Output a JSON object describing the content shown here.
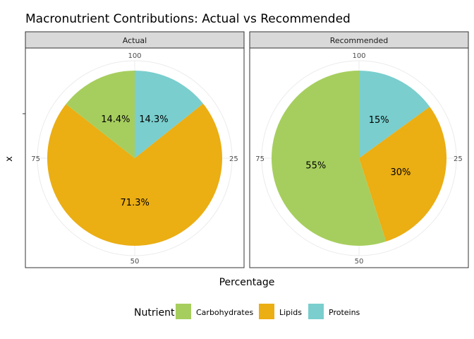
{
  "chart_data": {
    "type": "pie",
    "title": "Macronutrient Contributions: Actual vs Recommended",
    "xlabel": "Percentage",
    "ylabel": "x",
    "angular_axis": {
      "range": [
        0,
        100
      ],
      "ticks": [
        "100",
        "25",
        "50",
        "75"
      ]
    },
    "legend": {
      "title": "Nutrient",
      "position": "bottom",
      "items": [
        {
          "name": "Carbohydrates",
          "color": "#A6CE5E"
        },
        {
          "name": "Lipids",
          "color": "#EBAE13"
        },
        {
          "name": "Proteins",
          "color": "#7ACECE"
        }
      ]
    },
    "panels": [
      {
        "label": "Actual",
        "slices": [
          {
            "name": "Proteins",
            "value": 14.3,
            "label": "14.3%",
            "color": "#7ACECE"
          },
          {
            "name": "Lipids",
            "value": 71.3,
            "label": "71.3%",
            "color": "#EBAE13"
          },
          {
            "name": "Carbohydrates",
            "value": 14.4,
            "label": "14.4%",
            "color": "#A6CE5E"
          }
        ]
      },
      {
        "label": "Recommended",
        "slices": [
          {
            "name": "Proteins",
            "value": 15,
            "label": "15%",
            "color": "#7ACECE"
          },
          {
            "name": "Lipids",
            "value": 30,
            "label": "30%",
            "color": "#EBAE13"
          },
          {
            "name": "Carbohydrates",
            "value": 55,
            "label": "55%",
            "color": "#A6CE5E"
          }
        ]
      }
    ]
  }
}
